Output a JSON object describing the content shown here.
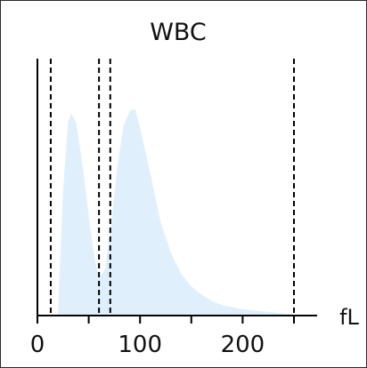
{
  "chart_data": {
    "type": "area",
    "title": "WBC",
    "xlabel": "fL",
    "ylabel": "",
    "xlim": [
      0,
      250
    ],
    "x_ticks": [
      0,
      100,
      200
    ],
    "grid": false,
    "fill_color": "#dff0fc",
    "line_color": "#000000",
    "threshold_lines": [
      13,
      60,
      71,
      250
    ],
    "x": [
      0,
      20,
      25,
      30,
      33,
      38,
      45,
      52,
      56,
      60,
      66,
      72,
      78,
      84,
      90,
      95,
      100,
      110,
      120,
      130,
      140,
      150,
      160,
      170,
      180,
      200,
      220,
      240,
      250
    ],
    "y": [
      0,
      0,
      60,
      93,
      97,
      92,
      68,
      40,
      27,
      18,
      22,
      44,
      72,
      91,
      98,
      99,
      90,
      68,
      45,
      30,
      20,
      14,
      10,
      7,
      5,
      3,
      2,
      1,
      0
    ]
  }
}
